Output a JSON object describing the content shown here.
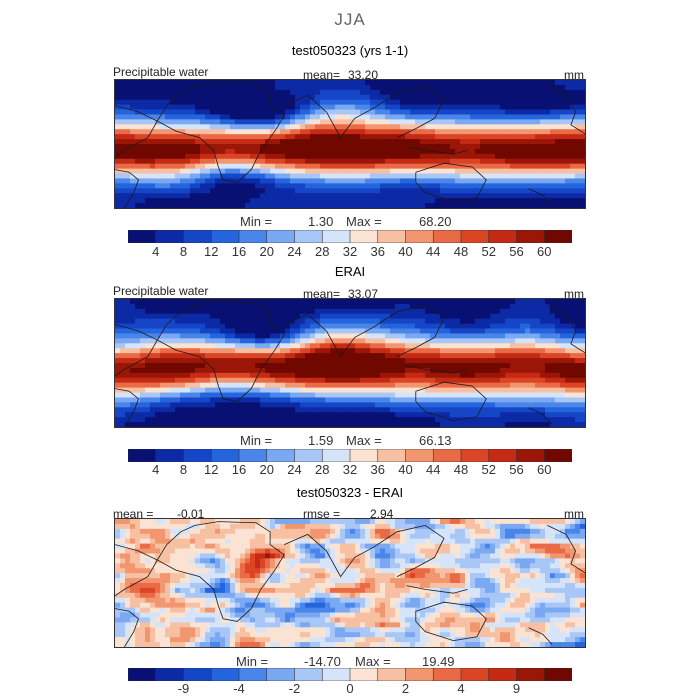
{
  "figure": {
    "title": "JJA"
  },
  "colors": {
    "abs_scale": [
      "#081073",
      "#0d2aa6",
      "#1546c8",
      "#2464dc",
      "#4a86ea",
      "#7aa8f2",
      "#a8c6f6",
      "#d6e4fa",
      "#fbe3d4",
      "#f8c0a2",
      "#f29670",
      "#ea6a46",
      "#dc4426",
      "#c42a14",
      "#9c1608",
      "#700800"
    ],
    "diff_scale": [
      "#081073",
      "#0d2aa6",
      "#1546c8",
      "#2464dc",
      "#4a86ea",
      "#7aa8f2",
      "#a8c6f6",
      "#d6e4fa",
      "#fbe3d4",
      "#f8c0a2",
      "#f29670",
      "#ea6a46",
      "#dc4426",
      "#c42a14",
      "#9c1608",
      "#700800"
    ],
    "land_outline": "#1a1a1a"
  },
  "chart_data": [
    {
      "type": "heatmap",
      "title": "test050323 (yrs 1-1)",
      "variable": "Precipitable water",
      "units": "mm",
      "mean_label": "mean=",
      "mean": "33.20",
      "min_label": "Min =",
      "min": "1.30",
      "max_label": "Max =",
      "max": "68.20",
      "colorbar_ticks": [
        "4",
        "8",
        "12",
        "16",
        "20",
        "24",
        "28",
        "32",
        "36",
        "40",
        "44",
        "48",
        "52",
        "56",
        "60"
      ]
    },
    {
      "type": "heatmap",
      "title": "ERAI",
      "variable": "Precipitable water",
      "units": "mm",
      "mean_label": "mean=",
      "mean": "33.07",
      "min_label": "Min =",
      "min": "1.59",
      "max_label": "Max =",
      "max": "66.13",
      "colorbar_ticks": [
        "4",
        "8",
        "12",
        "16",
        "20",
        "24",
        "28",
        "32",
        "36",
        "40",
        "44",
        "48",
        "52",
        "56",
        "60"
      ]
    },
    {
      "type": "heatmap",
      "title": "test050323 - ERAI",
      "units": "mm",
      "mean_label": "mean =",
      "mean": "-0.01",
      "rmse_label": "rmse =",
      "rmse": "2.94",
      "min_label": "Min =",
      "min": "-14.70",
      "max_label": "Max =",
      "max": "19.49",
      "colorbar_ticks": [
        "-9",
        "-4",
        "-2",
        "0",
        "2",
        "4",
        "9"
      ]
    }
  ]
}
